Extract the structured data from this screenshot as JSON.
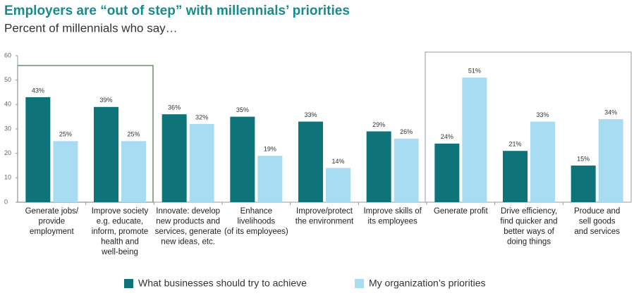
{
  "chart_data": {
    "type": "bar",
    "title": "Employers are “out of step” with millennials’ priorities",
    "subtitle": "Percent of millennials who say…",
    "categories": [
      [
        "Generate jobs/",
        "provide",
        "employment"
      ],
      [
        "Improve society",
        "e.g. educate,",
        "inform, promote",
        "health and",
        "well-being"
      ],
      [
        "Innovate: develop",
        "new products and",
        "services, generate",
        "new ideas, etc."
      ],
      [
        "Enhance",
        "livelihoods",
        "(of its employees)"
      ],
      [
        "Improve/protect",
        "the environment"
      ],
      [
        "Improve skills of",
        "its employees"
      ],
      [
        "Generate profit"
      ],
      [
        "Drive efficiency,",
        "find quicker and",
        "better ways of",
        "doing things"
      ],
      [
        "Produce and",
        "sell goods",
        "and services"
      ]
    ],
    "series": [
      {
        "name": "What businesses should try to achieve",
        "color": "#0e7479",
        "values": [
          43,
          39,
          36,
          35,
          33,
          29,
          24,
          21,
          15
        ],
        "value_labels": [
          "43%",
          "39%",
          "36%",
          "35%",
          "33%",
          "29%",
          "24%",
          "21%",
          "15%"
        ]
      },
      {
        "name": "My organization’s priorities",
        "color": "#a8dcf2",
        "values": [
          25,
          25,
          32,
          19,
          14,
          26,
          51,
          33,
          34
        ],
        "value_labels": [
          "25%",
          "25%",
          "32%",
          "19%",
          "14%",
          "26%",
          "51%",
          "33%",
          "34%"
        ]
      }
    ],
    "ylim": [
      0,
      60
    ],
    "yticks": [
      0,
      10,
      20,
      30,
      40,
      50,
      60
    ]
  }
}
